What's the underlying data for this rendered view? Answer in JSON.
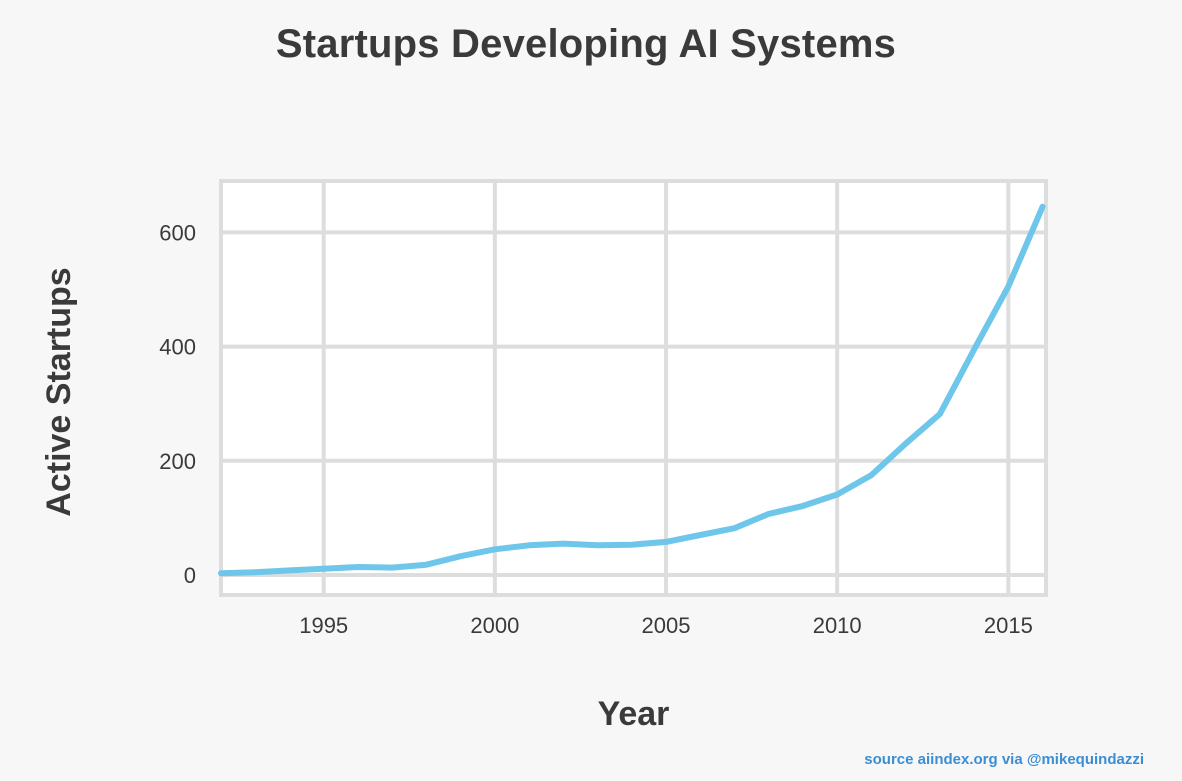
{
  "chart_data": {
    "type": "line",
    "title": "Startups Developing AI Systems",
    "xlabel": "Year",
    "ylabel": "Active Startups",
    "xlim": [
      1992,
      2016.1
    ],
    "ylim": [
      -35,
      690
    ],
    "xticks": [
      1995,
      2000,
      2005,
      2010,
      2015
    ],
    "yticks": [
      0,
      200,
      400,
      600
    ],
    "grid": true,
    "legend": "none",
    "series": [
      {
        "color": "#6ec6ea",
        "x": [
          1992,
          1993,
          1994,
          1995,
          1996,
          1997,
          1998,
          1999,
          2000,
          2001,
          2002,
          2003,
          2004,
          2005,
          2006,
          2007,
          2008,
          2009,
          2010,
          2011,
          2012,
          2013,
          2014,
          2015,
          2016
        ],
        "y": [
          3,
          5,
          8,
          11,
          14,
          13,
          18,
          33,
          45,
          52,
          55,
          52,
          53,
          58,
          70,
          82,
          107,
          121,
          141,
          175,
          230,
          282,
          395,
          505,
          645
        ]
      }
    ]
  },
  "source": "source aiindex.org via @mikequindazzi",
  "colors": {
    "background": "#f7f7f7",
    "plot_background": "#ffffff",
    "grid": "#dddddd",
    "line": "#6ec6ea",
    "source_text": "#3b8ed4"
  }
}
